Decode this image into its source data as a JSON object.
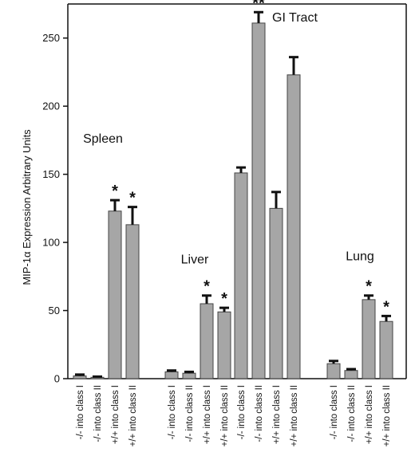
{
  "chart_data": {
    "type": "bar",
    "ylabel": "MIP-1α Expression Arbitrary Units",
    "xlabel": "",
    "ylim": [
      0,
      275
    ],
    "yticks": [
      0,
      50,
      100,
      150,
      200,
      250
    ],
    "grid": false,
    "legend": "none",
    "bar_color": "#a6a6a6",
    "bar_edge_color": "#444444",
    "error_bar_color": "#111111",
    "groups": [
      {
        "name": "Spleen",
        "categories": [
          "-/- into class I",
          "-/- into class II",
          "+/+ into class I",
          "+/+ into class II"
        ],
        "values": [
          2,
          1,
          123,
          113
        ],
        "errors": [
          1,
          0.5,
          8,
          13
        ],
        "significance": [
          "",
          "",
          "*",
          "*"
        ]
      },
      {
        "name": "Liver",
        "categories": [
          "-/- into class I",
          "-/- into class II",
          "+/+ into class I",
          "+/+ into class II"
        ],
        "values": [
          5,
          4,
          55,
          49
        ],
        "errors": [
          1,
          1,
          6,
          3
        ],
        "significance": [
          "",
          "",
          "*",
          "*"
        ]
      },
      {
        "name": "GI Tract",
        "categories": [
          "-/- into class I",
          "-/- into class II",
          "+/+ into class I",
          "+/+ into class II"
        ],
        "values": [
          151,
          261,
          125,
          223
        ],
        "errors": [
          4,
          8,
          12,
          13
        ],
        "significance": [
          "",
          "**",
          "",
          ""
        ]
      },
      {
        "name": "Lung",
        "categories": [
          "-/- into class I",
          "-/- into class II",
          "+/+ into class I",
          "+/+ into class II"
        ],
        "values": [
          11,
          6,
          58,
          42
        ],
        "errors": [
          2,
          1,
          3,
          4
        ],
        "significance": [
          "",
          "",
          "*",
          "*"
        ]
      }
    ]
  }
}
